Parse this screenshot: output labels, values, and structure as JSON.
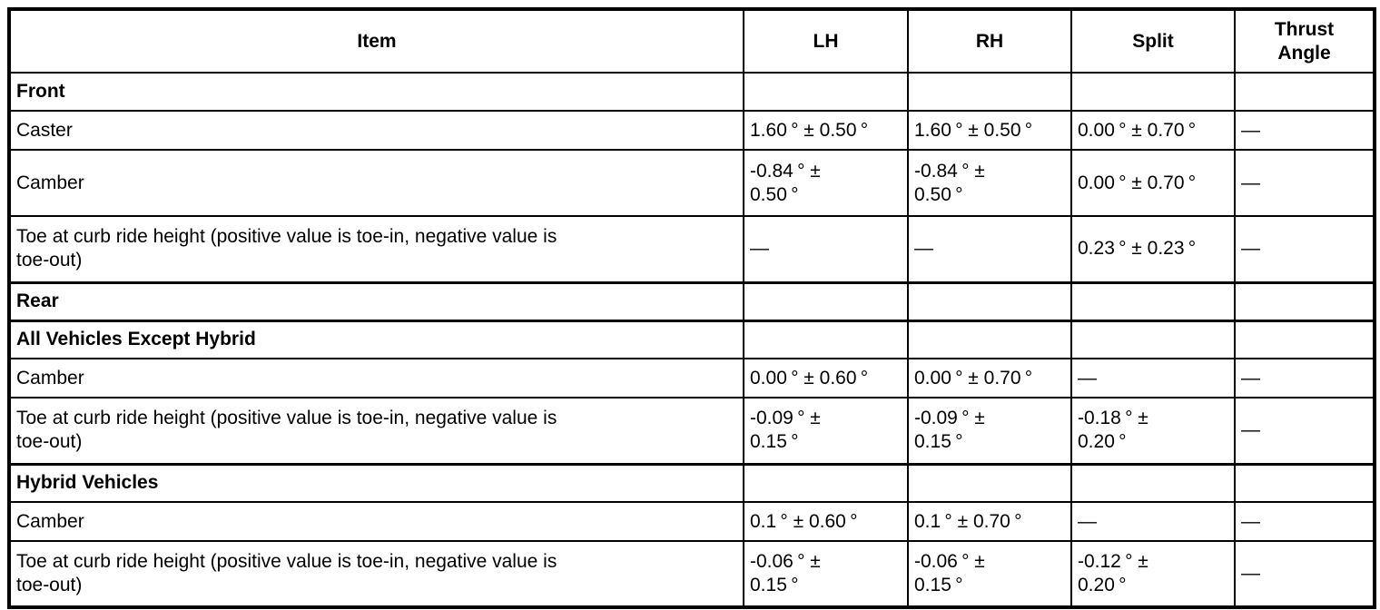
{
  "table": {
    "headers": {
      "item": "Item",
      "lh": "LH",
      "rh": "RH",
      "split": "Split",
      "thrust": "Thrust\nAngle"
    },
    "rows": [
      {
        "type": "section",
        "item": "Front"
      },
      {
        "type": "data",
        "item": "Caster",
        "lh": "1.60 ° ± 0.50 °",
        "rh": "1.60 ° ± 0.50 °",
        "split": "0.00 ° ± 0.70 °",
        "thrust": "—"
      },
      {
        "type": "data",
        "item": "Camber",
        "lh": "-0.84 ° ±\n0.50 °",
        "rh": "-0.84 ° ±\n0.50 °",
        "split": "0.00 ° ± 0.70 °",
        "thrust": "—"
      },
      {
        "type": "data",
        "item": "Toe at curb ride height (positive value is toe-in, negative value is\ntoe-out)",
        "lh": "—",
        "rh": "—",
        "split": "0.23 ° ± 0.23 °",
        "thrust": "—"
      },
      {
        "type": "section",
        "item": "Rear"
      },
      {
        "type": "section",
        "item": "All Vehicles Except Hybrid"
      },
      {
        "type": "data",
        "item": "Camber",
        "lh": "0.00 ° ± 0.60 °",
        "rh": "0.00 ° ± 0.70 °",
        "split": "—",
        "thrust": "—"
      },
      {
        "type": "data",
        "item": "Toe at curb ride height (positive value is toe-in, negative value is\ntoe-out)",
        "lh": "-0.09 ° ±\n0.15 °",
        "rh": "-0.09 ° ±\n0.15 °",
        "split": "-0.18 ° ±\n0.20 °",
        "thrust": "—"
      },
      {
        "type": "section",
        "item": "Hybrid Vehicles"
      },
      {
        "type": "data",
        "item": "Camber",
        "lh": "0.1 ° ± 0.60 °",
        "rh": "0.1 ° ± 0.70 °",
        "split": "—",
        "thrust": "—"
      },
      {
        "type": "data",
        "item": "Toe at curb ride height (positive value is toe-in, negative value is\ntoe-out)",
        "lh": "-0.06 ° ±\n0.15 °",
        "rh": "-0.06 ° ±\n0.15 °",
        "split": "-0.12 ° ±\n0.20 °",
        "thrust": "—"
      }
    ]
  }
}
